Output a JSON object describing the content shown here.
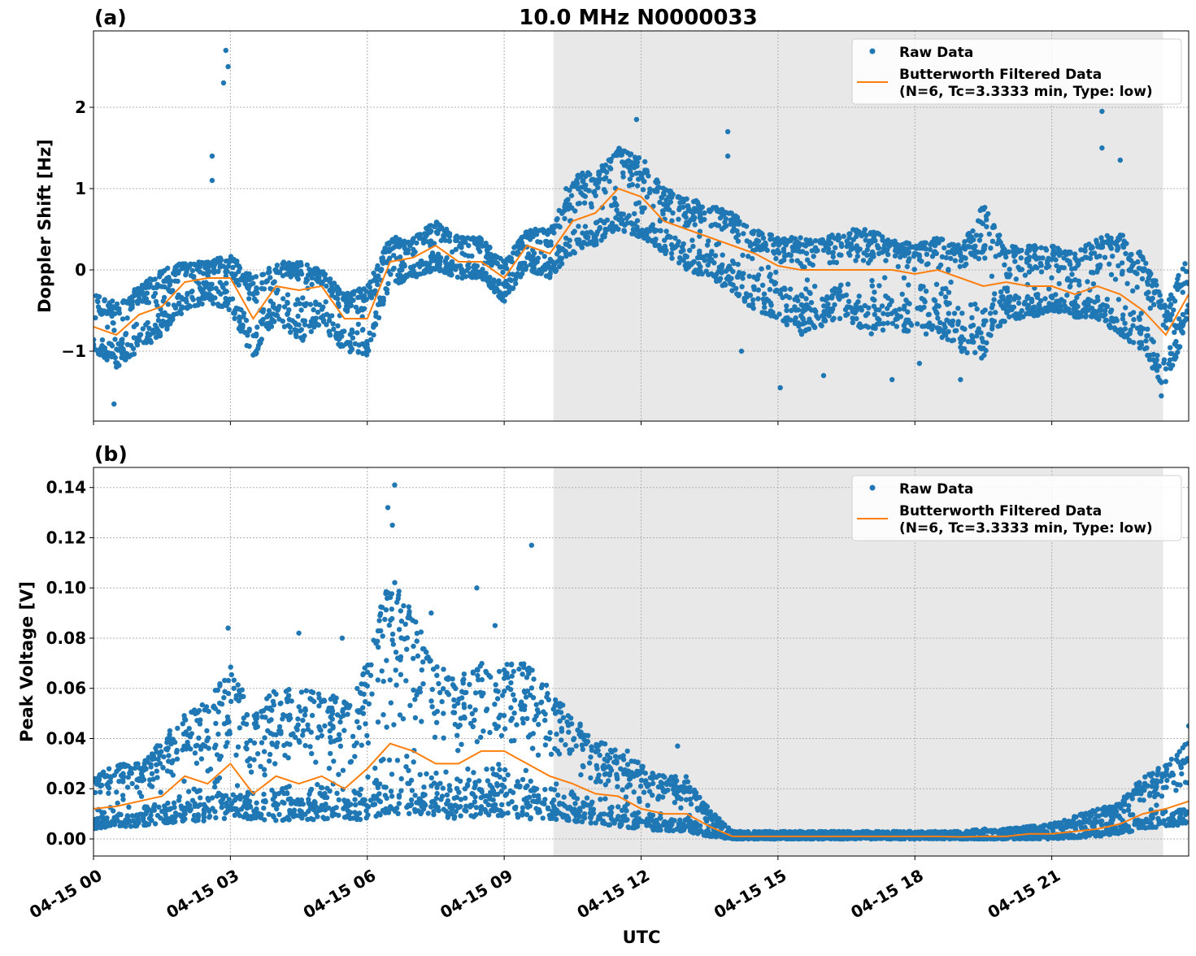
{
  "figure_title": "10.0 MHz N0000033",
  "colors": {
    "raw": "#1f77b4",
    "filtered": "#ff7f0e",
    "night_shade": "#e8e8e8",
    "grid": "#b0b0b0"
  },
  "legend": {
    "raw_label": "Raw Data",
    "filtered_label_line1": "Butterworth Filtered Data",
    "filtered_label_line2": "(N=6, Tc=3.3333 min, Type: low)",
    "placement": "top-right"
  },
  "xaxis": {
    "label": "UTC",
    "range_hours": [
      0,
      24
    ],
    "tick_hours": [
      0,
      3,
      6,
      9,
      12,
      15,
      18,
      21
    ],
    "tick_labels": [
      "04-15 00",
      "04-15 03",
      "04-15 06",
      "04-15 09",
      "04-15 12",
      "04-15 15",
      "04-15 18",
      "04-15 21"
    ]
  },
  "chart_data": [
    {
      "type": "scatter",
      "panel_label": "(a)",
      "ylabel": "Doppler Shift [Hz]",
      "ylim": [
        -1.86,
        2.94
      ],
      "yticks": [
        -1,
        0,
        1,
        2
      ],
      "ytick_labels": [
        "−1",
        "0",
        "1",
        "2"
      ],
      "grid": true,
      "night_shading_hours": [
        10.08,
        23.44
      ],
      "x_hours": [
        0,
        0.5,
        1,
        1.5,
        2,
        2.5,
        3,
        3.5,
        4,
        4.5,
        5,
        5.5,
        6,
        6.5,
        7,
        7.5,
        8,
        8.5,
        9,
        9.5,
        10,
        10.5,
        11,
        11.5,
        12,
        12.5,
        13,
        13.5,
        14,
        14.5,
        15,
        15.5,
        16,
        16.5,
        17,
        17.5,
        18,
        18.5,
        19,
        19.5,
        20,
        20.5,
        21,
        21.5,
        22,
        22.5,
        23,
        23.5,
        24
      ],
      "series": [
        {
          "name": "Butterworth Filtered Data",
          "values": [
            -0.7,
            -0.8,
            -0.55,
            -0.45,
            -0.15,
            -0.1,
            -0.1,
            -0.6,
            -0.2,
            -0.25,
            -0.2,
            -0.6,
            -0.6,
            0.1,
            0.15,
            0.3,
            0.1,
            0.1,
            -0.1,
            0.3,
            0.2,
            0.6,
            0.7,
            1.0,
            0.9,
            0.6,
            0.5,
            0.4,
            0.3,
            0.2,
            0.05,
            0.0,
            0.0,
            0.0,
            0.0,
            0.0,
            -0.05,
            0.0,
            -0.1,
            -0.2,
            -0.15,
            -0.2,
            -0.2,
            -0.3,
            -0.2,
            -0.3,
            -0.5,
            -0.8,
            -0.3
          ]
        },
        {
          "name": "Raw Data",
          "low": [
            -1.0,
            -1.2,
            -1.0,
            -0.8,
            -0.5,
            -0.4,
            -0.5,
            -1.1,
            -0.6,
            -0.9,
            -0.7,
            -1.0,
            -1.05,
            -0.2,
            -0.1,
            0.0,
            -0.1,
            -0.1,
            -0.4,
            0.0,
            -0.1,
            0.2,
            0.3,
            0.5,
            0.4,
            0.2,
            0.0,
            -0.1,
            -0.3,
            -0.5,
            -0.6,
            -0.8,
            -0.7,
            -0.6,
            -0.8,
            -0.7,
            -0.8,
            -0.8,
            -1.0,
            -1.1,
            -0.6,
            -0.6,
            -0.5,
            -0.6,
            -0.6,
            -0.8,
            -1.0,
            -1.5,
            -0.6
          ],
          "high": [
            -0.3,
            -0.4,
            -0.2,
            0.0,
            0.1,
            0.1,
            0.2,
            -0.1,
            0.1,
            0.1,
            0.0,
            -0.3,
            -0.2,
            0.4,
            0.4,
            0.6,
            0.4,
            0.4,
            0.1,
            0.5,
            0.5,
            1.2,
            1.2,
            1.5,
            1.4,
            1.0,
            0.9,
            0.8,
            0.7,
            0.5,
            0.4,
            0.4,
            0.4,
            0.5,
            0.5,
            0.4,
            0.3,
            0.4,
            0.3,
            0.8,
            0.3,
            0.3,
            0.3,
            0.2,
            0.4,
            0.5,
            0.2,
            -0.4,
            0.2
          ],
          "outliers": [
            [
              2.9,
              2.7
            ],
            [
              2.95,
              2.5
            ],
            [
              2.85,
              2.3
            ],
            [
              2.6,
              1.4
            ],
            [
              2.6,
              1.1
            ],
            [
              0.45,
              -1.65
            ],
            [
              11.9,
              1.85
            ],
            [
              13.9,
              1.7
            ],
            [
              13.9,
              1.4
            ],
            [
              22.1,
              1.95
            ],
            [
              22.1,
              1.5
            ],
            [
              22.5,
              1.35
            ],
            [
              15.05,
              -1.45
            ],
            [
              16.0,
              -1.3
            ],
            [
              17.5,
              -1.35
            ],
            [
              19.0,
              -1.35
            ],
            [
              23.4,
              -1.55
            ],
            [
              14.2,
              -1.0
            ],
            [
              18.1,
              -1.15
            ]
          ]
        }
      ]
    },
    {
      "type": "scatter",
      "panel_label": "(b)",
      "ylabel": "Peak Voltage [V]",
      "ylim": [
        -0.0068,
        0.148
      ],
      "yticks": [
        0,
        0.02,
        0.04,
        0.06,
        0.08,
        0.1,
        0.12,
        0.14
      ],
      "ytick_labels": [
        "0.00",
        "0.02",
        "0.04",
        "0.06",
        "0.08",
        "0.10",
        "0.12",
        "0.14"
      ],
      "grid": true,
      "night_shading_hours": [
        10.08,
        23.44
      ],
      "x_hours": [
        0,
        0.5,
        1,
        1.5,
        2,
        2.5,
        3,
        3.5,
        4,
        4.5,
        5,
        5.5,
        6,
        6.5,
        7,
        7.5,
        8,
        8.5,
        9,
        9.5,
        10,
        10.5,
        11,
        11.5,
        12,
        12.5,
        13,
        13.5,
        14,
        14.5,
        15,
        15.5,
        16,
        16.5,
        17,
        17.5,
        18,
        18.5,
        19,
        19.5,
        20,
        20.5,
        21,
        21.5,
        22,
        22.5,
        23,
        23.5,
        24
      ],
      "series": [
        {
          "name": "Butterworth Filtered Data",
          "values": [
            0.012,
            0.013,
            0.015,
            0.017,
            0.025,
            0.022,
            0.03,
            0.018,
            0.025,
            0.022,
            0.025,
            0.02,
            0.028,
            0.038,
            0.035,
            0.03,
            0.03,
            0.035,
            0.035,
            0.03,
            0.025,
            0.022,
            0.018,
            0.017,
            0.012,
            0.01,
            0.01,
            0.005,
            0.001,
            0.001,
            0.001,
            0.001,
            0.001,
            0.001,
            0.001,
            0.001,
            0.001,
            0.001,
            0.0008,
            0.001,
            0.001,
            0.002,
            0.002,
            0.003,
            0.004,
            0.006,
            0.01,
            0.012,
            0.015
          ]
        },
        {
          "name": "Raw Data",
          "low": [
            0.004,
            0.005,
            0.005,
            0.006,
            0.007,
            0.007,
            0.008,
            0.007,
            0.007,
            0.007,
            0.008,
            0.007,
            0.008,
            0.01,
            0.01,
            0.009,
            0.008,
            0.009,
            0.009,
            0.008,
            0.008,
            0.007,
            0.006,
            0.005,
            0.004,
            0.003,
            0.003,
            0.001,
            0,
            0,
            0,
            0,
            0,
            0,
            0,
            0,
            0,
            0,
            0,
            0,
            0,
            0,
            0,
            0.0005,
            0.001,
            0.002,
            0.004,
            0.005,
            0.006
          ],
          "high": [
            0.025,
            0.03,
            0.03,
            0.04,
            0.05,
            0.055,
            0.07,
            0.05,
            0.06,
            0.06,
            0.06,
            0.055,
            0.07,
            0.11,
            0.09,
            0.07,
            0.065,
            0.07,
            0.07,
            0.07,
            0.06,
            0.05,
            0.04,
            0.035,
            0.03,
            0.025,
            0.025,
            0.012,
            0.003,
            0.003,
            0.003,
            0.003,
            0.003,
            0.003,
            0.003,
            0.003,
            0.003,
            0.003,
            0.003,
            0.004,
            0.004,
            0.005,
            0.006,
            0.009,
            0.012,
            0.015,
            0.025,
            0.03,
            0.04
          ],
          "outliers": [
            [
              6.6,
              0.141
            ],
            [
              6.45,
              0.132
            ],
            [
              6.55,
              0.125
            ],
            [
              9.6,
              0.117
            ],
            [
              8.4,
              0.1
            ],
            [
              2.95,
              0.084
            ],
            [
              4.5,
              0.082
            ],
            [
              7.4,
              0.09
            ],
            [
              5.45,
              0.08
            ],
            [
              8.8,
              0.085
            ],
            [
              11.7,
              0.035
            ],
            [
              12.8,
              0.037
            ],
            [
              24,
              0.045
            ]
          ]
        }
      ]
    }
  ]
}
